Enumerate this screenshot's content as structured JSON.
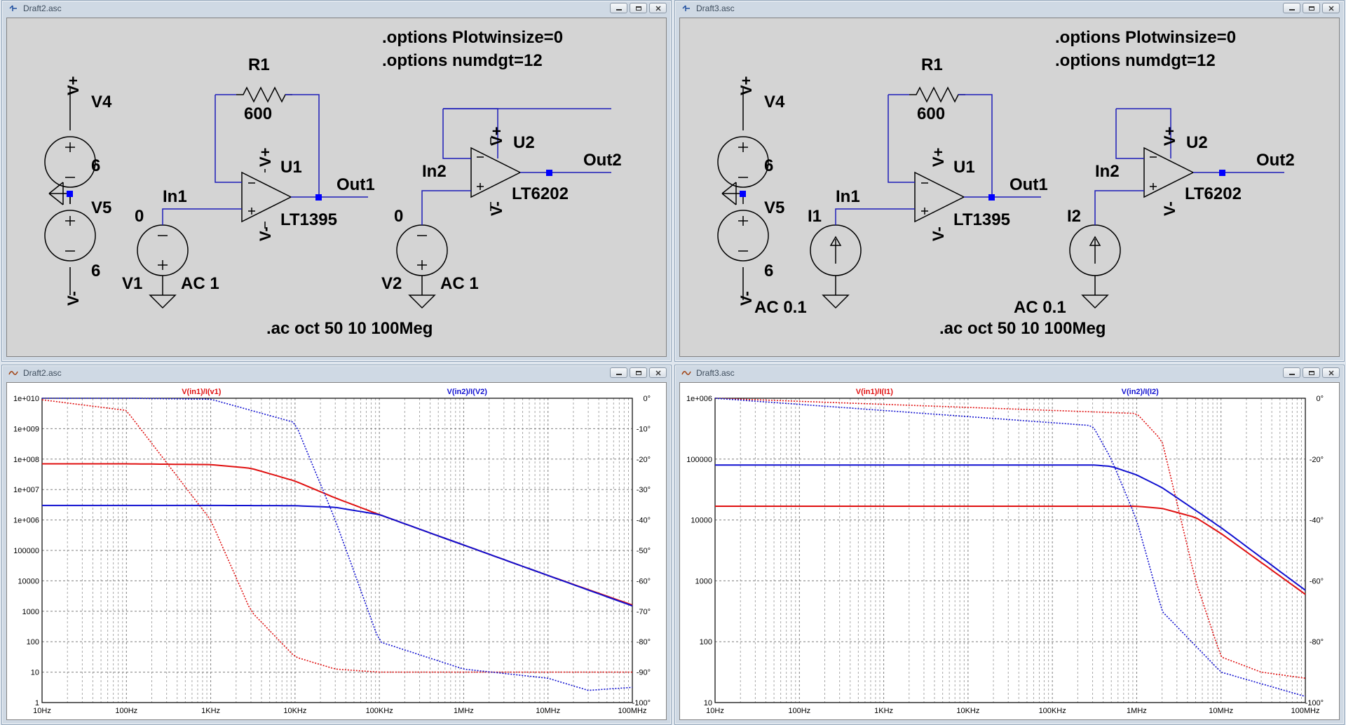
{
  "windows": {
    "sch1_title": "Draft2.asc",
    "sch2_title": "Draft3.asc",
    "plot1_title": "Draft2.asc",
    "plot2_title": "Draft3.asc"
  },
  "schematic1": {
    "opt1": ".options Plotwinsize=0",
    "opt2": ".options numdgt=12",
    "ac_cmd": ".ac oct 50 10 100Meg",
    "vplus": "V+",
    "vminus": "V-",
    "v4": "V4",
    "v4_val": "6",
    "v5": "V5",
    "v5_val": "6",
    "r1": "R1",
    "r1_val": "600",
    "u1": "U1",
    "u1_model": "LT1395",
    "u2": "U2",
    "u2_model": "LT6202",
    "in1": "In1",
    "in2": "In2",
    "out1": "Out1",
    "out2": "Out2",
    "v1": "V1",
    "v1_dc": "0",
    "v1_ac": "AC 1",
    "v2": "V2",
    "v2_dc": "0",
    "v2_ac": "AC 1"
  },
  "schematic2": {
    "opt1": ".options Plotwinsize=0",
    "opt2": ".options numdgt=12",
    "ac_cmd": ".ac oct 50 10 100Meg",
    "vplus": "V+",
    "vminus": "V-",
    "v4": "V4",
    "v4_val": "6",
    "v5": "V5",
    "v5_val": "6",
    "r1": "R1",
    "r1_val": "600",
    "u1": "U1",
    "u1_model": "LT1395",
    "u2": "U2",
    "u2_model": "LT6202",
    "in1": "In1",
    "in2": "In2",
    "out1": "Out1",
    "out2": "Out2",
    "i1": "I1",
    "i1_ac": "AC 0.1",
    "i2": "I2",
    "i2_ac": "AC 0.1"
  },
  "colors": {
    "trace_red": "#e01010",
    "trace_blue": "#1010d0",
    "wire": "#1c1cb8",
    "part": "#000000",
    "junction": "#0000ff"
  },
  "chart_data": [
    {
      "type": "line",
      "x_scale": "log",
      "y_scale": "log",
      "x_ticks": [
        "10Hz",
        "100Hz",
        "1KHz",
        "10KHz",
        "100KHz",
        "1MHz",
        "10MHz",
        "100MHz"
      ],
      "y_ticks": [
        "1e+010",
        "1e+009",
        "1e+008",
        "1e+007",
        "1e+006",
        "100000",
        "10000",
        "1000",
        "100",
        "10",
        "1"
      ],
      "y2_ticks": [
        "0°",
        "-10°",
        "-20°",
        "-30°",
        "-40°",
        "-50°",
        "-60°",
        "-70°",
        "-80°",
        "-90°",
        "-100°"
      ],
      "xlim": [
        10,
        100000000
      ],
      "ylim": [
        1,
        10000000000
      ],
      "y2lim": [
        -100,
        0
      ],
      "grid": true,
      "series": [
        {
          "name": "V(in1)/I(v1)",
          "color": "#e01010",
          "x": [
            10,
            100,
            1000,
            3000,
            10000,
            30000,
            100000,
            1000000,
            10000000,
            100000000
          ],
          "mag": [
            70000000,
            70000000,
            66000000,
            50000000,
            19000000,
            5300000,
            1500000,
            150000,
            15000,
            1600
          ],
          "phase": [
            -0.5,
            -4,
            -40,
            -70,
            -85,
            -89,
            -90,
            -90,
            -90,
            -90
          ]
        },
        {
          "name": "V(in2)/I(V2)",
          "color": "#1010d0",
          "x": [
            10,
            100,
            1000,
            10000,
            30000,
            100000,
            1000000,
            10000000,
            30000000,
            100000000
          ],
          "mag": [
            3000000,
            3000000,
            3000000,
            2950000,
            2600000,
            1500000,
            150000,
            15000,
            5000,
            1500
          ],
          "phase": [
            0,
            0,
            -0.3,
            -8,
            -40,
            -80,
            -89,
            -92,
            -96,
            -95
          ]
        }
      ]
    },
    {
      "type": "line",
      "x_scale": "log",
      "y_scale": "log",
      "x_ticks": [
        "10Hz",
        "100Hz",
        "1KHz",
        "10KHz",
        "100KHz",
        "1MHz",
        "10MHz",
        "100MHz"
      ],
      "y_ticks": [
        "1e+006",
        "100000",
        "10000",
        "1000",
        "100",
        "10"
      ],
      "y2_ticks": [
        "0°",
        "-20°",
        "-40°",
        "-60°",
        "-80°",
        "-100°"
      ],
      "xlim": [
        10,
        100000000
      ],
      "ylim": [
        10,
        1000000
      ],
      "y2lim": [
        -100,
        0
      ],
      "grid": true,
      "series": [
        {
          "name": "V(in1)/I(I1)",
          "color": "#e01010",
          "x": [
            10,
            1000000,
            2000000,
            5000000,
            10000000,
            30000000,
            100000000
          ],
          "mag": [
            16800,
            16800,
            15500,
            11000,
            6000,
            2000,
            600
          ],
          "phase": [
            0,
            -5,
            -14,
            -60,
            -85,
            -90,
            -92
          ]
        },
        {
          "name": "V(in2)/I(I2)",
          "color": "#1010d0",
          "x": [
            10,
            300000,
            500000,
            1000000,
            2000000,
            10000000,
            100000000
          ],
          "mag": [
            80000,
            80000,
            76000,
            55000,
            34000,
            7500,
            700
          ],
          "phase": [
            0,
            -9,
            -20,
            -40,
            -70,
            -90,
            -98
          ]
        }
      ]
    }
  ]
}
